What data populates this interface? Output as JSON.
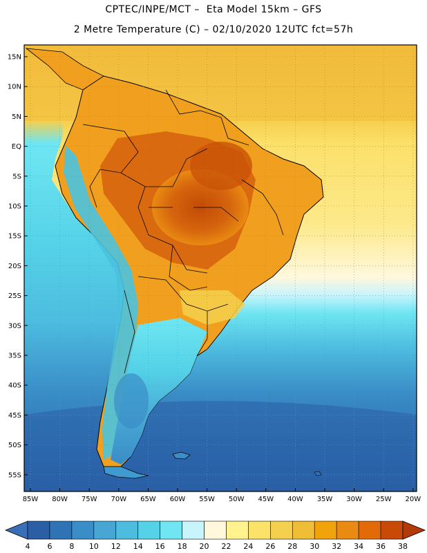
{
  "header": {
    "line1": "CPTEC/INPE/MCT –  Eta Model 15km – GFS",
    "line2": "2 Metre Temperature (C) – 02/10/2020 12UTC fct=57h"
  },
  "map": {
    "lat_ticks": [
      "15N",
      "10N",
      "5N",
      "EQ",
      "5S",
      "10S",
      "15S",
      "20S",
      "25S",
      "30S",
      "35S",
      "40S",
      "45S",
      "50S",
      "55S"
    ],
    "lon_ticks": [
      "85W",
      "80W",
      "75W",
      "70W",
      "65W",
      "60W",
      "55W",
      "50W",
      "45W",
      "40W",
      "35W",
      "30W",
      "25W",
      "20W"
    ]
  },
  "colorbar": {
    "labels": [
      "4",
      "6",
      "8",
      "10",
      "12",
      "14",
      "16",
      "18",
      "20",
      "22",
      "24",
      "26",
      "28",
      "30",
      "32",
      "34",
      "36",
      "38"
    ],
    "colors": [
      "#2a5fa5",
      "#2f73b5",
      "#3a8dc6",
      "#47a6d3",
      "#4dbcdf",
      "#55d2e8",
      "#6fe6f2",
      "#c8f4fb",
      "#fff8dd",
      "#fff28f",
      "#fbe36a",
      "#f5d04e",
      "#efbd36",
      "#f0a30a",
      "#e98a12",
      "#e26a08",
      "#c84a06"
    ],
    "low_color": "#3a6fb8",
    "high_color": "#b33b0a"
  },
  "palette": {
    "ocean_tropic": "#f2bb3c",
    "ocean_mid": "#6ddff2",
    "ocean_south": "#3a8cc8",
    "ocean_deep": "#2b66aa",
    "land_hot": "#d96a10",
    "land_very_hot": "#c85208",
    "land_warm": "#f0a01e",
    "andes_cold": "#4ac2df",
    "patagonia": "#3f9ad0"
  }
}
